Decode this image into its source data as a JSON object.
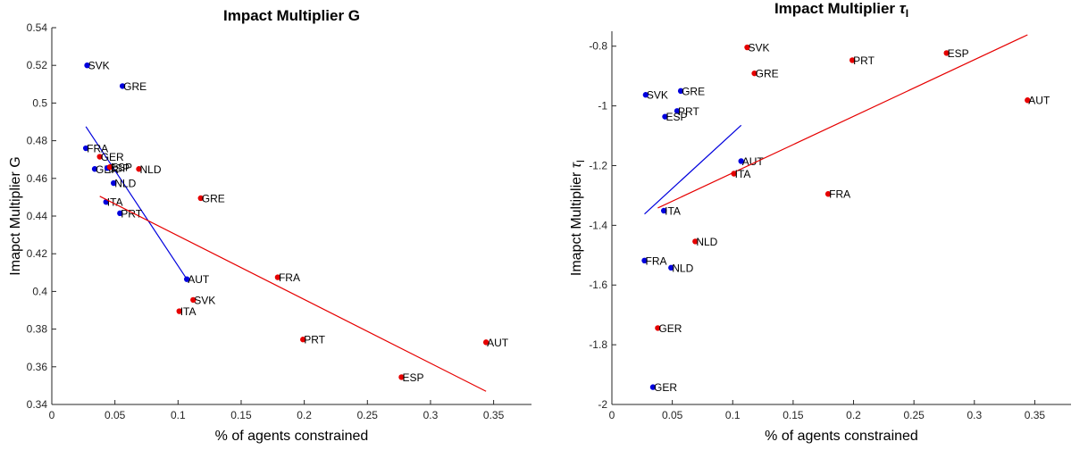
{
  "colors": {
    "blue": "#0000dd",
    "red": "#e60000",
    "axis": "#262626",
    "tick_text": "#262626",
    "label_text": "#000000"
  },
  "chart_data": [
    {
      "type": "scatter",
      "title": "Impact Multiplier G",
      "xlabel": "% of agents constrained",
      "ylabel": "Imapct Multiplier G",
      "xlim": [
        0,
        0.38
      ],
      "ylim": [
        0.34,
        0.54
      ],
      "xticks": [
        "0",
        "0.05",
        "0.1",
        "0.15",
        "0.2",
        "0.25",
        "0.3",
        "0.35"
      ],
      "xtick_values": [
        0,
        0.05,
        0.1,
        0.15,
        0.2,
        0.25,
        0.3,
        0.35
      ],
      "yticks": [
        "0.34",
        "0.36",
        "0.38",
        "0.4",
        "0.42",
        "0.44",
        "0.46",
        "0.48",
        "0.5",
        "0.52",
        "0.54"
      ],
      "ytick_values": [
        0.34,
        0.36,
        0.38,
        0.4,
        0.42,
        0.44,
        0.46,
        0.48,
        0.5,
        0.52,
        0.54
      ],
      "grid": false,
      "series": [
        {
          "color": "blue",
          "points": [
            {
              "label": "SVK",
              "x": 0.028,
              "y": 0.52
            },
            {
              "label": "GRE",
              "x": 0.056,
              "y": 0.509
            },
            {
              "label": "FRA",
              "x": 0.027,
              "y": 0.476
            },
            {
              "label": "GER",
              "x": 0.034,
              "y": 0.465
            },
            {
              "label": "ESP",
              "x": 0.044,
              "y": 0.4655
            },
            {
              "label": "NLD",
              "x": 0.049,
              "y": 0.4575
            },
            {
              "label": "ITA",
              "x": 0.043,
              "y": 0.4475
            },
            {
              "label": "PRT",
              "x": 0.054,
              "y": 0.4415
            },
            {
              "label": "AUT",
              "x": 0.107,
              "y": 0.4065
            }
          ],
          "fit": {
            "x": [
              0.027,
              0.107
            ],
            "y": [
              0.4875,
              0.4065
            ]
          }
        },
        {
          "color": "red",
          "points": [
            {
              "label": "GER",
              "x": 0.038,
              "y": 0.4715
            },
            {
              "label": "ESP",
              "x": 0.046,
              "y": 0.466
            },
            {
              "label": "NLD",
              "x": 0.069,
              "y": 0.465
            },
            {
              "label": "GRE",
              "x": 0.118,
              "y": 0.4495
            },
            {
              "label": "ITA",
              "x": 0.101,
              "y": 0.3895
            },
            {
              "label": "SVK",
              "x": 0.112,
              "y": 0.3955
            },
            {
              "label": "FRA",
              "x": 0.179,
              "y": 0.4075
            },
            {
              "label": "PRT",
              "x": 0.199,
              "y": 0.3745
            },
            {
              "label": "AUT",
              "x": 0.344,
              "y": 0.373
            },
            {
              "label": "ESP",
              "x": 0.277,
              "y": 0.3545
            }
          ],
          "fit": {
            "x": [
              0.038,
              0.344
            ],
            "y": [
              0.4505,
              0.347
            ]
          }
        }
      ]
    },
    {
      "type": "scatter",
      "title": "Impact Multiplier τI",
      "title_main": "Impact Multiplier ",
      "title_symbol": "τ",
      "title_subscript": "I",
      "xlabel": "% of agents constrained",
      "ylabel": "Imapct Multiplier τI",
      "ylabel_main": "Imapct Multiplier ",
      "ylabel_symbol": "τ",
      "ylabel_subscript": "I",
      "xlim": [
        0,
        0.38
      ],
      "ylim": [
        -2,
        -0.75
      ],
      "xticks": [
        "0",
        "0.05",
        "0.1",
        "0.15",
        "0.2",
        "0.25",
        "0.3",
        "0.35"
      ],
      "xtick_values": [
        0,
        0.05,
        0.1,
        0.15,
        0.2,
        0.25,
        0.3,
        0.35
      ],
      "yticks": [
        "-2",
        "-1.8",
        "-1.6",
        "-1.4",
        "-1.2",
        "-1",
        "-0.8"
      ],
      "ytick_values": [
        -2,
        -1.8,
        -1.6,
        -1.4,
        -1.2,
        -1,
        -0.8
      ],
      "grid": false,
      "series": [
        {
          "color": "blue",
          "points": [
            {
              "label": "SVK",
              "x": 0.028,
              "y": -0.963
            },
            {
              "label": "GRE",
              "x": 0.057,
              "y": -0.95
            },
            {
              "label": "PRT",
              "x": 0.054,
              "y": -1.017
            },
            {
              "label": "ESP",
              "x": 0.044,
              "y": -1.036
            },
            {
              "label": "AUT",
              "x": 0.107,
              "y": -1.185
            },
            {
              "label": "ITA",
              "x": 0.043,
              "y": -1.351
            },
            {
              "label": "FRA",
              "x": 0.027,
              "y": -1.518
            },
            {
              "label": "NLD",
              "x": 0.049,
              "y": -1.542
            },
            {
              "label": "GER",
              "x": 0.034,
              "y": -1.942
            }
          ],
          "fit": {
            "x": [
              0.027,
              0.107
            ],
            "y": [
              -1.362,
              -1.065
            ]
          }
        },
        {
          "color": "red",
          "points": [
            {
              "label": "SVK",
              "x": 0.112,
              "y": -0.804
            },
            {
              "label": "ESP",
              "x": 0.277,
              "y": -0.823
            },
            {
              "label": "PRT",
              "x": 0.199,
              "y": -0.847
            },
            {
              "label": "GRE",
              "x": 0.118,
              "y": -0.891
            },
            {
              "label": "AUT",
              "x": 0.344,
              "y": -0.981
            },
            {
              "label": "ITA",
              "x": 0.101,
              "y": -1.227
            },
            {
              "label": "FRA",
              "x": 0.179,
              "y": -1.295
            },
            {
              "label": "NLD",
              "x": 0.069,
              "y": -1.454
            },
            {
              "label": "GER",
              "x": 0.038,
              "y": -1.744
            }
          ],
          "fit": {
            "x": [
              0.038,
              0.344
            ],
            "y": [
              -1.342,
              -0.762
            ]
          }
        }
      ]
    }
  ]
}
